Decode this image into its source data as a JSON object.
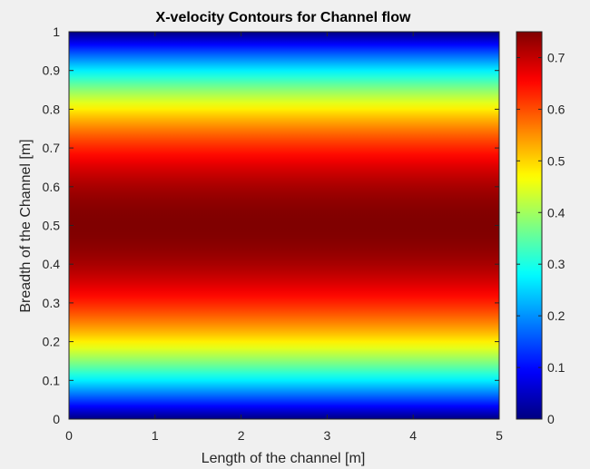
{
  "chart_data": {
    "type": "heatmap",
    "title": "X-velocity Contours for Channel flow",
    "xlabel": "Length of the channel [m]",
    "ylabel": "Breadth of the Channel [m]",
    "xlim": [
      0,
      5
    ],
    "ylim": [
      0,
      1
    ],
    "x_ticks": [
      "0",
      "1",
      "2",
      "3",
      "4",
      "5"
    ],
    "y_ticks": [
      "0",
      "0.1",
      "0.2",
      "0.3",
      "0.4",
      "0.5",
      "0.6",
      "0.7",
      "0.8",
      "0.9",
      "1"
    ],
    "colormap": "jet",
    "colorbar": {
      "range": [
        0,
        0.75
      ],
      "ticks": [
        "0",
        "0.1",
        "0.2",
        "0.3",
        "0.4",
        "0.5",
        "0.6",
        "0.7"
      ]
    },
    "field": "u(y) = 3 * y * (1 - y), uniform along x (parabolic channel-flow profile)",
    "profile": {
      "y": [
        0,
        0.1,
        0.2,
        0.3,
        0.4,
        0.5,
        0.6,
        0.7,
        0.8,
        0.9,
        1
      ],
      "value": [
        0,
        0.27,
        0.48,
        0.63,
        0.72,
        0.75,
        0.72,
        0.63,
        0.48,
        0.27,
        0
      ]
    },
    "grid": false,
    "legend": "none"
  },
  "colors": {
    "background": "#f0f0f0",
    "axis_line": "#262626",
    "text": "#262626"
  }
}
